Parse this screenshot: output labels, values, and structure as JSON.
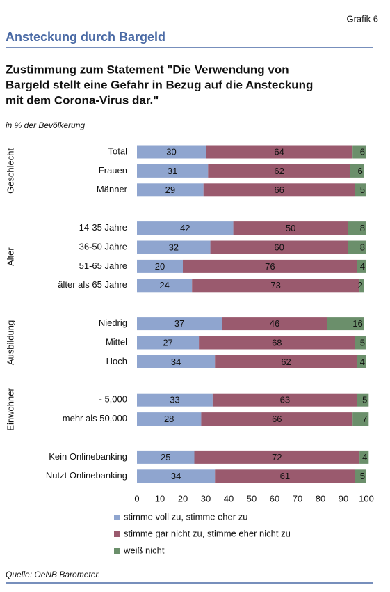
{
  "header": {
    "label": "Grafik 6",
    "title": "Ansteckung durch Bargeld"
  },
  "chart_data": {
    "type": "stacked-barh",
    "title": [
      "Zustimmung zum Statement \"Die Verwendung von",
      "Bargeld stellt eine Gefahr in Bezug auf die Ansteckung",
      "mit dem Corona-Virus dar.\""
    ],
    "subtitle": "in % der Bevölkerung",
    "group_labels": [
      "Geschlecht",
      "Alter",
      "Ausbildung",
      "Einwohner"
    ],
    "categories": [
      "Total",
      "Frauen",
      "Männer",
      null,
      "14-35 Jahre",
      "36-50 Jahre",
      "51-65 Jahre",
      "älter als 65 Jahre",
      null,
      "Niedrig",
      "Mittel",
      "Hoch",
      null,
      "- 5,000",
      "mehr als 50,000",
      null,
      "Kein Onlinebanking",
      "Nutzt Onlinebanking"
    ],
    "series": [
      {
        "name": "stimme voll zu, stimme eher zu",
        "color": "#8fa5cf",
        "values": [
          30,
          31,
          29,
          null,
          42,
          32,
          20,
          24,
          null,
          37,
          27,
          34,
          null,
          33,
          28,
          null,
          25,
          34
        ]
      },
      {
        "name": "stimme gar nicht zu, stimme eher nicht zu",
        "color": "#9a5a6e",
        "values": [
          64,
          62,
          66,
          null,
          50,
          60,
          76,
          73,
          null,
          46,
          68,
          62,
          null,
          63,
          66,
          null,
          72,
          61
        ]
      },
      {
        "name": "weiß nicht",
        "color": "#6b8f6b",
        "values": [
          6,
          6,
          5,
          null,
          8,
          8,
          4,
          2,
          null,
          16,
          5,
          4,
          null,
          5,
          7,
          null,
          4,
          5
        ]
      }
    ],
    "xlim": [
      0,
      100
    ],
    "xticks": [
      0,
      10,
      20,
      30,
      40,
      50,
      60,
      70,
      80,
      90,
      100
    ]
  },
  "source": "Quelle: OeNB Barometer."
}
